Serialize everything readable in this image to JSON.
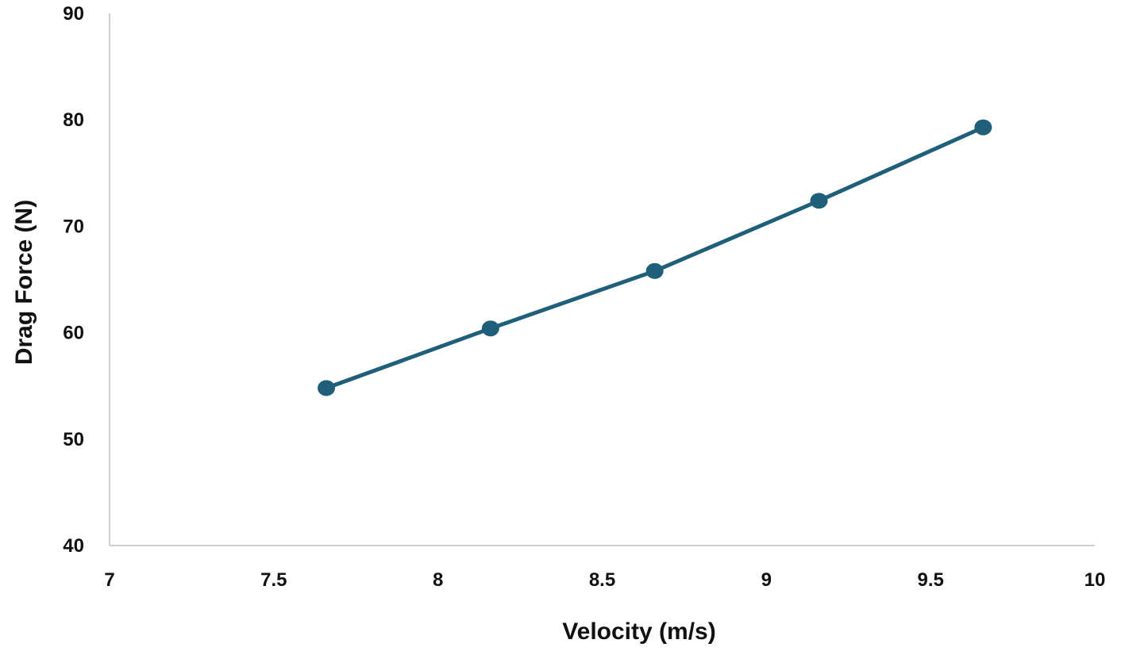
{
  "chart_data": {
    "type": "line",
    "title": "",
    "xlabel": "Velocity (m/s)",
    "ylabel": "Drag Force (N)",
    "xlim": [
      7,
      10
    ],
    "ylim": [
      40,
      90
    ],
    "x_ticks": [
      7,
      7.5,
      8,
      8.5,
      9,
      9.5,
      10
    ],
    "x_tick_labels": [
      "7",
      "7.5",
      "8",
      "8.5",
      "9",
      "9.5",
      "10"
    ],
    "y_ticks": [
      40,
      50,
      60,
      70,
      80,
      90
    ],
    "y_tick_labels": [
      "40",
      "50",
      "60",
      "70",
      "80",
      "90"
    ],
    "grid": false,
    "legend": "none",
    "series": [
      {
        "color": "#1f5f7a",
        "x": [
          7.66,
          8.16,
          8.66,
          9.16,
          9.66
        ],
        "y": [
          54.8,
          60.4,
          65.8,
          72.4,
          79.3
        ]
      }
    ]
  }
}
